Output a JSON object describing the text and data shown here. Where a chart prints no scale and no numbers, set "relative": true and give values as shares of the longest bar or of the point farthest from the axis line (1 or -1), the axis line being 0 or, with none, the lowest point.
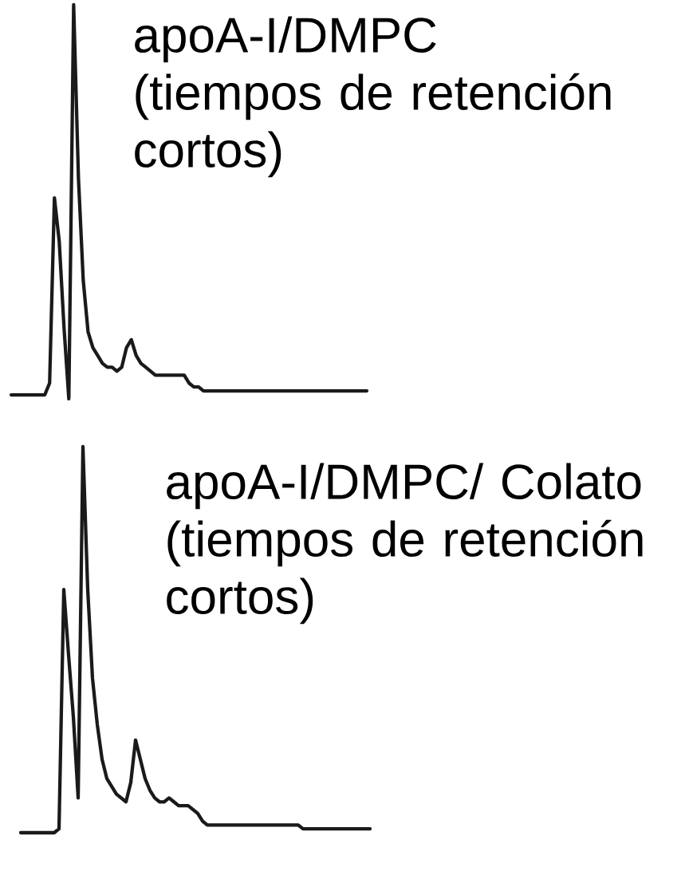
{
  "chart_data": [
    {
      "type": "line",
      "relative": true,
      "title": "apoA-I/DMPC",
      "subtitle": "(tiempos de retención cortos)",
      "categories": [
        null,
        null,
        null,
        null,
        null,
        null,
        null,
        null,
        null,
        null,
        null,
        null,
        null,
        null,
        null,
        null,
        null,
        null,
        null,
        null,
        null,
        null,
        null,
        null,
        null,
        null,
        null,
        null,
        null,
        null,
        null,
        null,
        null,
        null,
        null,
        null,
        null,
        null,
        null,
        null,
        null,
        null,
        null,
        null,
        null,
        null,
        null,
        null,
        null,
        null,
        null,
        null,
        null,
        null,
        null,
        null,
        null,
        null,
        null,
        null,
        null,
        null,
        null,
        null,
        null,
        null,
        null,
        null,
        null,
        null,
        null,
        null,
        null,
        null,
        null
      ],
      "series": [
        {
          "color": "#1a1a1a",
          "values": [
            0.01,
            0.01,
            0.01,
            0.01,
            0.01,
            0.01,
            0.01,
            0.01,
            0.04,
            0.51,
            0.4,
            0.18,
            0,
            1,
            0.56,
            0.3,
            0.17,
            0.13,
            0.11,
            0.09,
            0.08,
            0.08,
            0.07,
            0.08,
            0.13,
            0.15,
            0.11,
            0.09,
            0.08,
            0.07,
            0.06,
            0.06,
            0.06,
            0.06,
            0.06,
            0.06,
            0.06,
            0.04,
            0.03,
            0.03,
            0.02,
            0.02,
            0.02,
            0.02,
            0.02,
            0.02,
            0.02,
            0.02,
            0.02,
            0.02,
            0.02,
            0.02,
            0.02,
            0.02,
            0.02,
            0.02,
            0.02,
            0.02,
            0.02,
            0.02,
            0.02,
            0.02,
            0.02,
            0.02,
            0.02,
            0.02,
            0.02,
            0.02,
            0.02,
            0.02,
            0.02,
            0.02,
            0.02,
            0.02,
            0.02
          ]
        }
      ]
    },
    {
      "type": "line",
      "relative": true,
      "title": "apoA-I/DMPC/ Colato",
      "subtitle": "(tiempos de retención cortos)",
      "categories": [
        null,
        null,
        null,
        null,
        null,
        null,
        null,
        null,
        null,
        null,
        null,
        null,
        null,
        null,
        null,
        null,
        null,
        null,
        null,
        null,
        null,
        null,
        null,
        null,
        null,
        null,
        null,
        null,
        null,
        null,
        null,
        null,
        null,
        null,
        null,
        null,
        null,
        null,
        null,
        null,
        null,
        null,
        null,
        null,
        null,
        null,
        null,
        null,
        null,
        null,
        null,
        null,
        null,
        null,
        null,
        null,
        null,
        null,
        null,
        null,
        null,
        null,
        null,
        null,
        null,
        null,
        null,
        null,
        null,
        null,
        null,
        null,
        null,
        null
      ],
      "series": [
        {
          "color": "#1a1a1a",
          "values": [
            0,
            0,
            0,
            0,
            0,
            0,
            0,
            0,
            0.01,
            0.63,
            0.46,
            0.3,
            0.09,
            1,
            0.63,
            0.4,
            0.28,
            0.19,
            0.14,
            0.12,
            0.1,
            0.09,
            0.08,
            0.13,
            0.24,
            0.19,
            0.14,
            0.11,
            0.09,
            0.08,
            0.08,
            0.09,
            0.08,
            0.07,
            0.07,
            0.07,
            0.06,
            0.05,
            0.03,
            0.02,
            0.02,
            0.02,
            0.02,
            0.02,
            0.02,
            0.02,
            0.02,
            0.02,
            0.02,
            0.02,
            0.02,
            0.02,
            0.02,
            0.02,
            0.02,
            0.02,
            0.02,
            0.02,
            0.02,
            0.01,
            0.01,
            0.01,
            0.01,
            0.01,
            0.01,
            0.01,
            0.01,
            0.01,
            0.01,
            0.01,
            0.01,
            0.01,
            0.01,
            0.01
          ]
        }
      ]
    }
  ]
}
